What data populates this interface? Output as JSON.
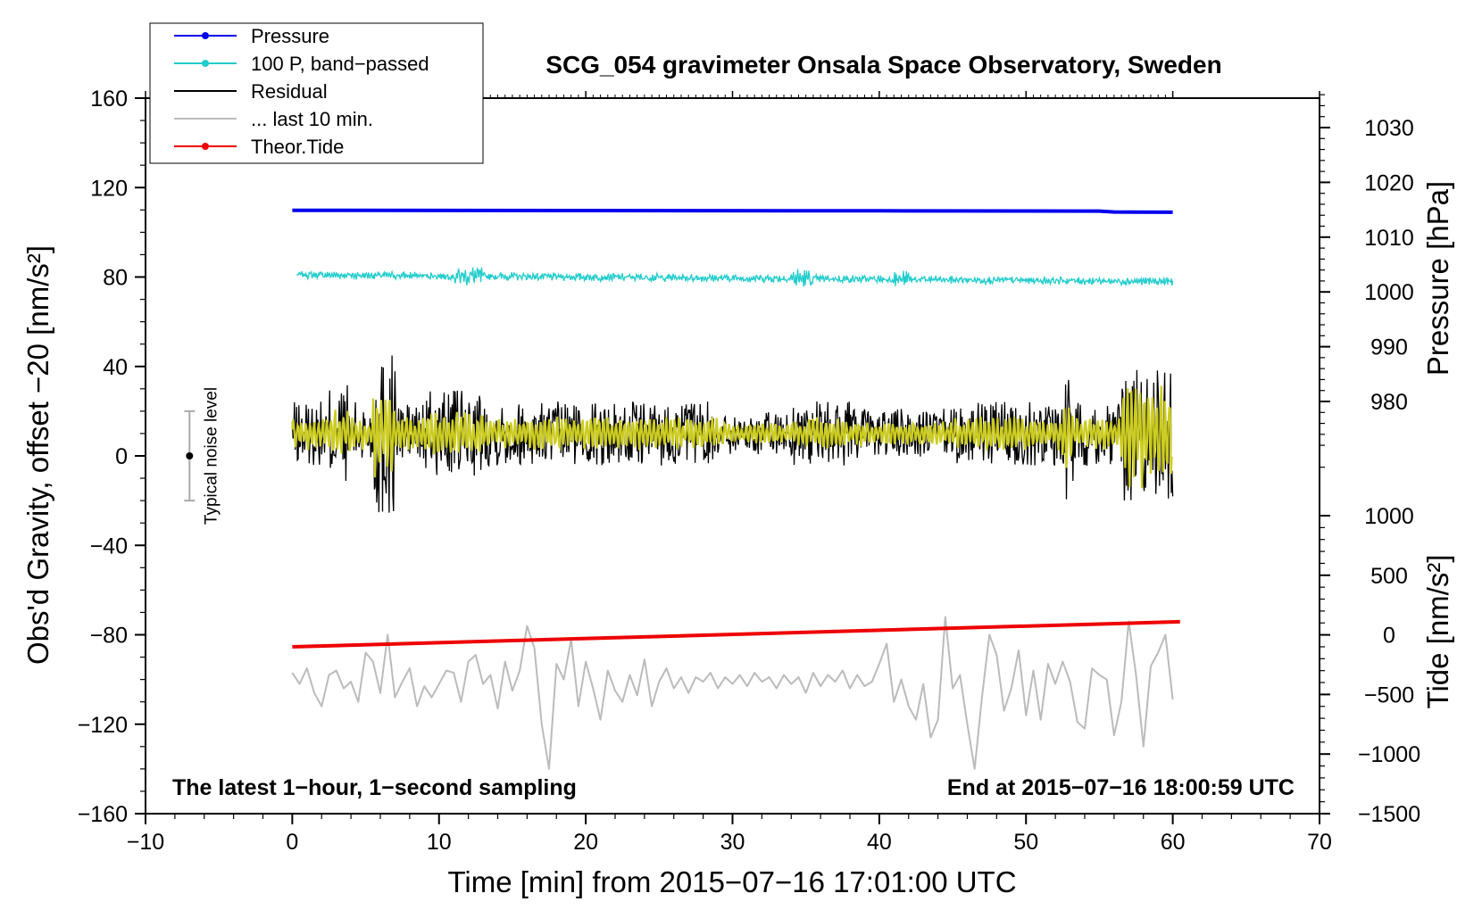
{
  "chart_data": {
    "type": "line",
    "title": "SCG_054 gravimeter Onsala Space Observatory, Sweden",
    "xlabel": "Time [min] from 2015−07−16 17:01:00 UTC",
    "ylabel": "Obs'd Gravity, offset −20 [nm/s²]",
    "pressure_label": "Pressure [hPa]",
    "tide_label": "Tide [nm/s²]",
    "xlim": [
      -10,
      70
    ],
    "ylim": [
      -160,
      160
    ],
    "x_ticks": [
      "−10",
      "0",
      "10",
      "20",
      "30",
      "40",
      "50",
      "60",
      "70"
    ],
    "y_ticks": [
      "160",
      "120",
      "80",
      "40",
      "0",
      "−40",
      "−80",
      "−120",
      "−160"
    ],
    "pressure_ticks": [
      "1030",
      "1020",
      "1010",
      "1000",
      "990",
      "980"
    ],
    "pressure_tick_values": [
      1030,
      1020,
      1010,
      1000,
      990,
      980
    ],
    "pressure_range": [
      968,
      1036
    ],
    "tide_ticks": [
      "1000",
      "500",
      "0",
      "−500",
      "−1000",
      "−1500"
    ],
    "tide_tick_values": [
      1000,
      500,
      0,
      -500,
      -1000,
      -1500
    ],
    "tide_range": [
      -1500,
      1000
    ],
    "note_left": "The latest 1−hour, 1−second sampling",
    "note_right": "End at 2015−07−16 18:00:59 UTC",
    "noise_label": "Typical noise level",
    "noise_bar": {
      "x": -7,
      "center": 0,
      "low": -20,
      "high": 20
    },
    "legend": [
      {
        "label": "Pressure",
        "color": "#0000ee",
        "marker": true
      },
      {
        "label": "100 P, band−passed",
        "color": "#22cccc",
        "marker": true
      },
      {
        "label": "Residual",
        "color": "#000000",
        "marker": false
      },
      {
        "label": "... last 10 min.",
        "color": "#bbbbbb",
        "marker": false
      },
      {
        "label": "Theor.Tide",
        "color": "#ee0000",
        "marker": true
      }
    ],
    "series": [
      {
        "name": "Pressure",
        "color": "#0000ee",
        "unit": "hPa",
        "x": [
          0,
          20,
          40,
          55,
          56,
          60
        ],
        "values": [
          1014.9,
          1014.85,
          1014.8,
          1014.75,
          1014.6,
          1014.55
        ]
      },
      {
        "name": "100 P, band−passed",
        "color": "#22cccc",
        "x_start": 0.3,
        "x_end": 60,
        "baseline_start": 81,
        "baseline_end": 78,
        "amplitude": 1.3
      },
      {
        "name": "Residual",
        "color": "#000000",
        "x_start": 0,
        "x_end": 60,
        "baseline": 10,
        "amplitude": 16
      },
      {
        "name": "Residual (smoothed)",
        "color": "#cccc22",
        "x_start": 0,
        "x_end": 60,
        "baseline": 10,
        "amplitude": 6
      },
      {
        "name": "... last 10 min.",
        "color": "#bbbbbb",
        "x": [
          0,
          0.5,
          1,
          1.5,
          2,
          2.5,
          3,
          3.5,
          4,
          4.5,
          5,
          5.5,
          6,
          6.5,
          7,
          7.5,
          8,
          8.5,
          9,
          9.5,
          10,
          10.5,
          11,
          11.5,
          12,
          12.5,
          13,
          13.5,
          14,
          14.5,
          15,
          15.5,
          16,
          16.5,
          17,
          17.5,
          18,
          18.5,
          19,
          19.5,
          20,
          20.5,
          21,
          21.5,
          22,
          22.5,
          23,
          23.5,
          24,
          24.5,
          25,
          25.5,
          26,
          26.5,
          27,
          27.5,
          28,
          28.5,
          29,
          29.5,
          30,
          30.5,
          31,
          31.5,
          32,
          32.5,
          33,
          33.5,
          34,
          34.5,
          35,
          35.5,
          36,
          36.5,
          37,
          37.5,
          38,
          38.5,
          39,
          39.5,
          40,
          40.5,
          41,
          41.5,
          42,
          42.5,
          43,
          43.5,
          44,
          44.5,
          45,
          45.5,
          46,
          46.5,
          47,
          47.5,
          48,
          48.5,
          49,
          49.5,
          50,
          50.5,
          51,
          51.5,
          52,
          52.5,
          53,
          53.5,
          54,
          54.5,
          55,
          55.5,
          56,
          56.5,
          57,
          57.5,
          58,
          58.5,
          59,
          59.5,
          60
        ],
        "values": [
          -97,
          -102,
          -95,
          -106,
          -112,
          -98,
          -96,
          -104,
          -101,
          -110,
          -88,
          -92,
          -106,
          -80,
          -108,
          -101,
          -95,
          -112,
          -103,
          -108,
          -102,
          -96,
          -97,
          -110,
          -92,
          -89,
          -102,
          -98,
          -113,
          -92,
          -105,
          -96,
          -76,
          -86,
          -120,
          -140,
          -93,
          -100,
          -82,
          -112,
          -92,
          -104,
          -118,
          -96,
          -105,
          -110,
          -98,
          -107,
          -91,
          -112,
          -101,
          -95,
          -104,
          -99,
          -106,
          -99,
          -101,
          -97,
          -104,
          -99,
          -102,
          -98,
          -103,
          -97,
          -101,
          -99,
          -104,
          -98,
          -102,
          -99,
          -106,
          -97,
          -103,
          -98,
          -101,
          -96,
          -104,
          -98,
          -103,
          -101,
          -93,
          -84,
          -110,
          -100,
          -112,
          -118,
          -102,
          -126,
          -118,
          -72,
          -104,
          -98,
          -120,
          -140,
          -108,
          -80,
          -89,
          -114,
          -104,
          -87,
          -116,
          -96,
          -118,
          -93,
          -102,
          -92,
          -101,
          -119,
          -122,
          -95,
          -98,
          -100,
          -125,
          -110,
          -74,
          -98,
          -130,
          -94,
          -88,
          -80,
          -109
        ]
      },
      {
        "name": "Theor.Tide",
        "color": "#ee0000",
        "unit": "nm/s²",
        "x": [
          0,
          60.5
        ],
        "values": [
          -100,
          110
        ]
      }
    ]
  }
}
